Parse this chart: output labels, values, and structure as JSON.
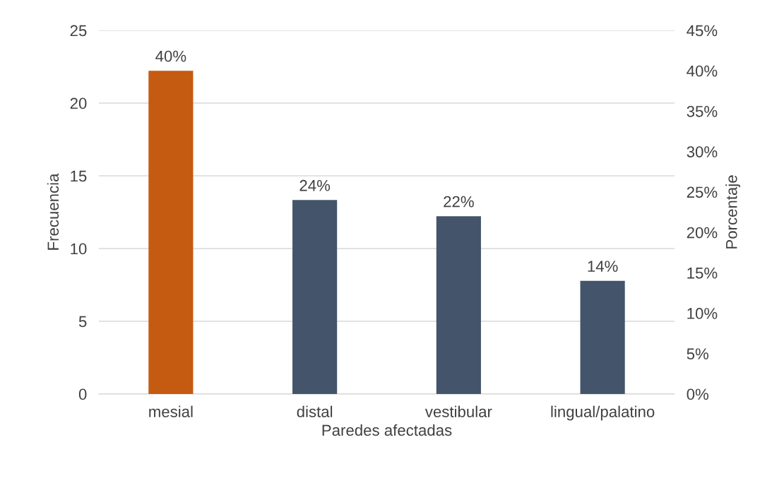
{
  "chart_data": {
    "type": "bar",
    "xlabel": "Paredes afectadas",
    "ylabel": "Frecuencia",
    "y2label": "Porcentaje",
    "categories": [
      "mesial",
      "distal",
      "vestibular",
      "lingual/palatino"
    ],
    "series": [
      {
        "axis": "y2",
        "colors": [
          "#c55a11",
          "#44546a",
          "#44546a",
          "#44546a"
        ],
        "values": [
          40,
          24,
          22,
          14
        ],
        "value_labels": [
          "40%",
          "24%",
          "22%",
          "14%"
        ]
      }
    ],
    "ylim": [
      0,
      25
    ],
    "yticks": [
      0,
      5,
      10,
      15,
      20,
      25
    ],
    "y2lim": [
      0,
      45
    ],
    "y2ticks": [
      {
        "value": 0,
        "label": "0%"
      },
      {
        "value": 5,
        "label": "5%"
      },
      {
        "value": 10,
        "label": "10%"
      },
      {
        "value": 15,
        "label": "15%"
      },
      {
        "value": 20,
        "label": "20%"
      },
      {
        "value": 25,
        "label": "25%"
      },
      {
        "value": 30,
        "label": "30%"
      },
      {
        "value": 35,
        "label": "35%"
      },
      {
        "value": 40,
        "label": "40%"
      },
      {
        "value": 45,
        "label": "45%"
      }
    ],
    "grid": "y"
  }
}
